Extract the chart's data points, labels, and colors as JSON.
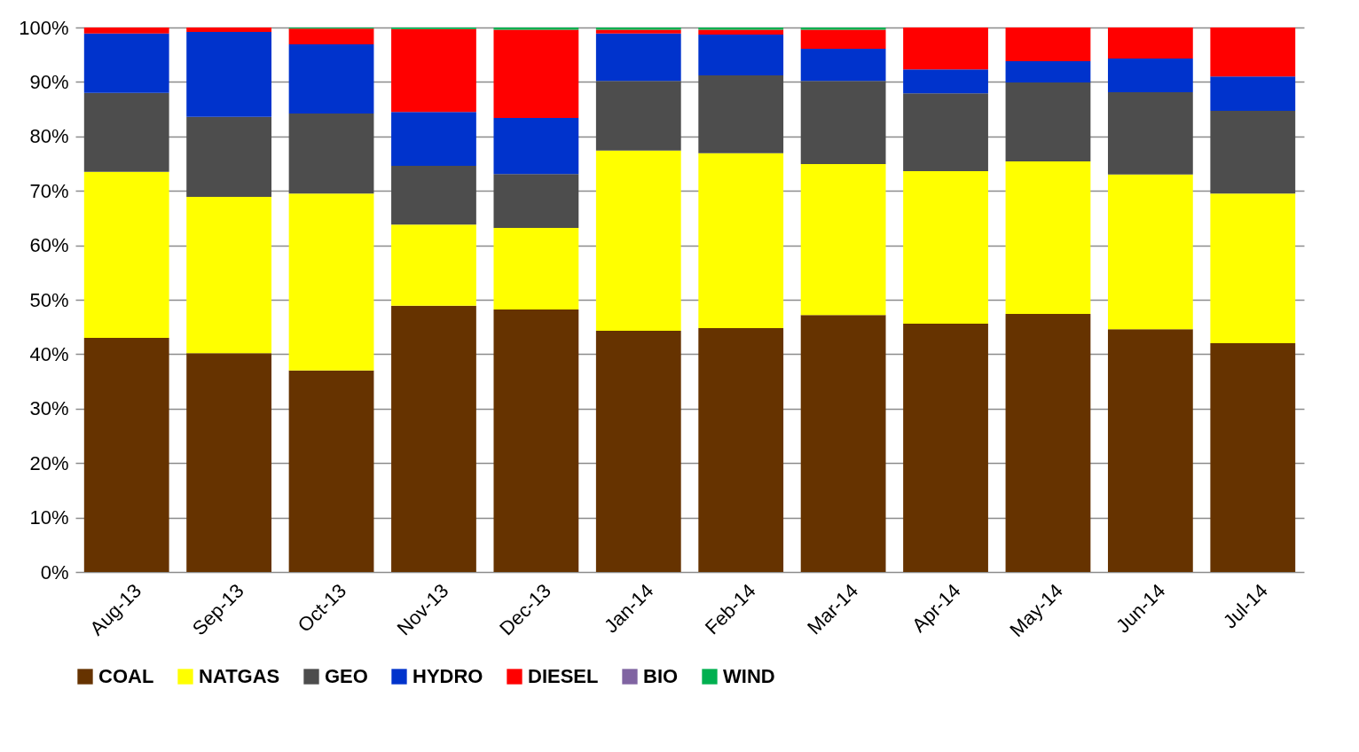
{
  "chart_data": {
    "type": "bar",
    "stacked": true,
    "categories": [
      "Aug-13",
      "Sep-13",
      "Oct-13",
      "Nov-13",
      "Dec-13",
      "Jan-14",
      "Feb-14",
      "Mar-14",
      "Apr-14",
      "May-14",
      "Jun-14",
      "Jul-14"
    ],
    "series": [
      {
        "name": "COAL",
        "color": "#663300",
        "values": [
          43.0,
          40.2,
          37.0,
          48.9,
          48.2,
          44.3,
          44.8,
          47.2,
          45.6,
          47.4,
          44.6,
          42.0
        ]
      },
      {
        "name": "NATGAS",
        "color": "#ffff00",
        "values": [
          30.5,
          28.7,
          32.5,
          14.9,
          15.0,
          33.1,
          32.1,
          27.7,
          28.0,
          28.0,
          28.4,
          27.5
        ]
      },
      {
        "name": "GEO",
        "color": "#4d4d4d",
        "values": [
          14.5,
          14.7,
          14.7,
          10.8,
          9.9,
          12.8,
          14.3,
          15.3,
          14.3,
          14.5,
          15.1,
          15.2
        ]
      },
      {
        "name": "HYDRO",
        "color": "#0033cc",
        "values": [
          10.9,
          15.6,
          12.7,
          9.9,
          10.3,
          8.7,
          7.5,
          5.9,
          4.4,
          3.9,
          6.2,
          6.3
        ]
      },
      {
        "name": "DIESEL",
        "color": "#ff0000",
        "values": [
          1.1,
          0.8,
          2.9,
          15.2,
          16.2,
          0.7,
          0.9,
          3.5,
          7.7,
          6.2,
          5.7,
          9.0
        ]
      },
      {
        "name": "BIO",
        "color": "#8064a2",
        "values": [
          0,
          0,
          0,
          0,
          0,
          0,
          0,
          0,
          0,
          0,
          0,
          0
        ]
      },
      {
        "name": "WIND",
        "color": "#00b050",
        "values": [
          0,
          0,
          0.2,
          0.3,
          0.4,
          0.4,
          0.4,
          0.4,
          0,
          0,
          0,
          0
        ]
      }
    ],
    "ylim": [
      0,
      100
    ],
    "yticks": [
      {
        "value": 0,
        "label": "0%"
      },
      {
        "value": 10,
        "label": "10%"
      },
      {
        "value": 20,
        "label": "20%"
      },
      {
        "value": 30,
        "label": "30%"
      },
      {
        "value": 40,
        "label": "40%"
      },
      {
        "value": 50,
        "label": "50%"
      },
      {
        "value": 60,
        "label": "60%"
      },
      {
        "value": 70,
        "label": "70%"
      },
      {
        "value": 80,
        "label": "80%"
      },
      {
        "value": 90,
        "label": "90%"
      },
      {
        "value": 100,
        "label": "100%"
      }
    ],
    "grid": "y",
    "legend": "bottom"
  }
}
